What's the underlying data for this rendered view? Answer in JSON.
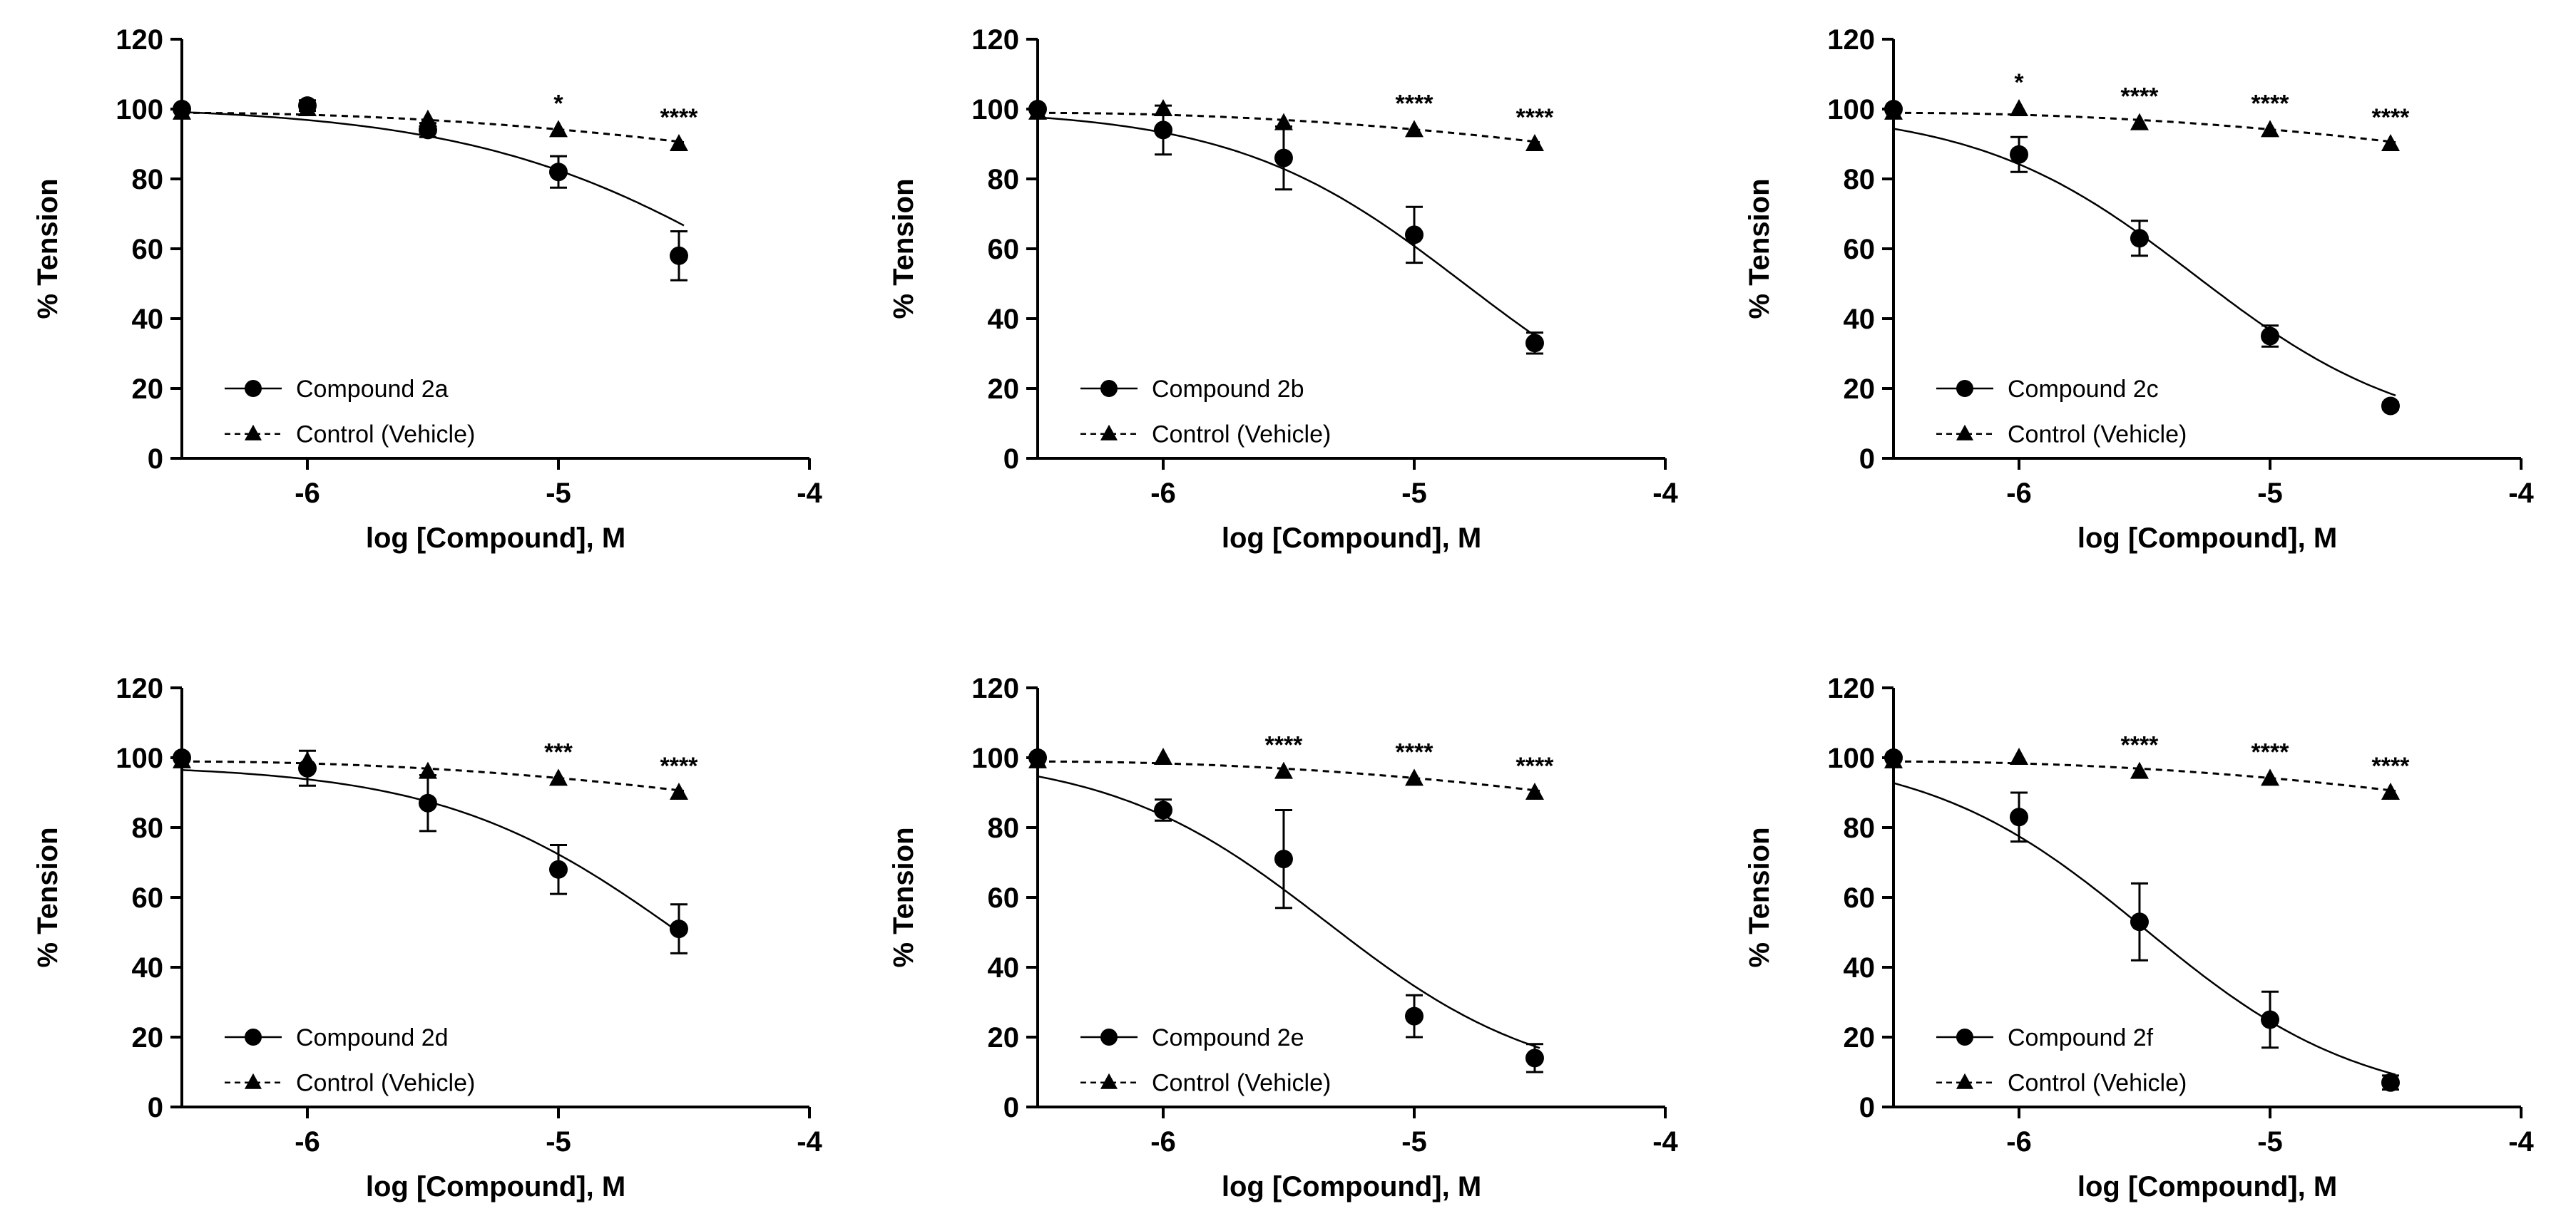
{
  "chart_data": [
    {
      "type": "scatter",
      "panel": "Compound 2a",
      "xlabel": "log [Compound], M",
      "ylabel": "% Tension",
      "xlim": [
        -6.5,
        -4
      ],
      "ylim": [
        0,
        120
      ],
      "xticks": [
        -6,
        -5,
        -4
      ],
      "xtick_labels": [
        "-6",
        "-5",
        "-4"
      ],
      "yticks": [
        0,
        20,
        40,
        60,
        80,
        100,
        120
      ],
      "ytick_labels": [
        "0",
        "20",
        "40",
        "60",
        "80",
        "100",
        "120"
      ],
      "legend_position": "bottom-left",
      "series": [
        {
          "name": "Compound 2a",
          "marker": "circle",
          "line": "solid",
          "x": [
            -6.5,
            -6,
            -5.52,
            -5,
            -4.52
          ],
          "y": [
            100,
            101,
            94,
            82,
            58
          ],
          "err": [
            0,
            1.5,
            2,
            4.5,
            7
          ],
          "curve": {
            "top": 101,
            "bottom": 0,
            "logIC50": -4.1,
            "hill": 0.72
          }
        },
        {
          "name": "Control (Vehicle)",
          "marker": "triangle",
          "line": "dashed",
          "x": [
            -6.5,
            -6,
            -5.52,
            -5,
            -4.52
          ],
          "y": [
            99,
            100,
            97,
            94,
            90
          ],
          "err": [
            0,
            0,
            0,
            0,
            0
          ],
          "curve": {
            "a": 98.9,
            "b": 90.5
          }
        }
      ],
      "annotations": [
        {
          "x": -5,
          "text": "*"
        },
        {
          "x": -4.52,
          "text": "****"
        }
      ]
    },
    {
      "type": "scatter",
      "panel": "Compound 2b",
      "xlabel": "log [Compound], M",
      "ylabel": "% Tension",
      "xlim": [
        -6.5,
        -4
      ],
      "ylim": [
        0,
        120
      ],
      "xticks": [
        -6,
        -5,
        -4
      ],
      "xtick_labels": [
        "-6",
        "-5",
        "-4"
      ],
      "yticks": [
        0,
        20,
        40,
        60,
        80,
        100,
        120
      ],
      "ytick_labels": [
        "0",
        "20",
        "40",
        "60",
        "80",
        "100",
        "120"
      ],
      "legend_position": "bottom-left",
      "series": [
        {
          "name": "Compound 2b",
          "marker": "circle",
          "line": "solid",
          "x": [
            -6.5,
            -6,
            -5.52,
            -5,
            -4.52
          ],
          "y": [
            100,
            94,
            86,
            64,
            33
          ],
          "err": [
            0,
            7,
            9,
            8,
            3
          ],
          "curve": {
            "top": 100,
            "bottom": 0,
            "logIC50": -4.8,
            "hill": 0.95
          }
        },
        {
          "name": "Control (Vehicle)",
          "marker": "triangle",
          "line": "dashed",
          "x": [
            -6.5,
            -6,
            -5.52,
            -5,
            -4.52
          ],
          "y": [
            99,
            100,
            96,
            94,
            90
          ],
          "err": [
            0,
            0,
            0,
            0,
            0
          ],
          "curve": {
            "a": 98.9,
            "b": 90.5
          }
        }
      ],
      "annotations": [
        {
          "x": -5,
          "text": "****"
        },
        {
          "x": -4.52,
          "text": "****"
        }
      ]
    },
    {
      "type": "scatter",
      "panel": "Compound 2c",
      "xlabel": "log [Compound], M",
      "ylabel": "% Tension",
      "xlim": [
        -6.5,
        -4
      ],
      "ylim": [
        0,
        120
      ],
      "xticks": [
        -6,
        -5,
        -4
      ],
      "xtick_labels": [
        "-6",
        "-5",
        "-4"
      ],
      "yticks": [
        0,
        20,
        40,
        60,
        80,
        100,
        120
      ],
      "ytick_labels": [
        "0",
        "20",
        "40",
        "60",
        "80",
        "100",
        "120"
      ],
      "legend_position": "bottom-left",
      "series": [
        {
          "name": "Compound 2c",
          "marker": "circle",
          "line": "solid",
          "x": [
            -6.5,
            -6,
            -5.52,
            -5,
            -4.52
          ],
          "y": [
            100,
            87,
            63,
            35,
            15
          ],
          "err": [
            0,
            5,
            5,
            3,
            1
          ],
          "curve": {
            "top": 100,
            "bottom": 5,
            "logIC50": -5.3,
            "hill": 1.0
          }
        },
        {
          "name": "Control (Vehicle)",
          "marker": "triangle",
          "line": "dashed",
          "x": [
            -6.5,
            -6,
            -5.52,
            -5,
            -4.52
          ],
          "y": [
            99,
            100,
            96,
            94,
            90
          ],
          "err": [
            0,
            0,
            0,
            0,
            0
          ],
          "curve": {
            "a": 98.9,
            "b": 90.5
          }
        }
      ],
      "annotations": [
        {
          "x": -6,
          "text": "*"
        },
        {
          "x": -5.52,
          "text": "****"
        },
        {
          "x": -5,
          "text": "****"
        },
        {
          "x": -4.52,
          "text": "****"
        }
      ]
    },
    {
      "type": "scatter",
      "panel": "Compound 2d",
      "xlabel": "log [Compound], M",
      "ylabel": "% Tension",
      "xlim": [
        -6.5,
        -4
      ],
      "ylim": [
        0,
        120
      ],
      "xticks": [
        -6,
        -5,
        -4
      ],
      "xtick_labels": [
        "-6",
        "-5",
        "-4"
      ],
      "yticks": [
        0,
        20,
        40,
        60,
        80,
        100,
        120
      ],
      "ytick_labels": [
        "0",
        "20",
        "40",
        "60",
        "80",
        "100",
        "120"
      ],
      "legend_position": "bottom-left",
      "series": [
        {
          "name": "Compound 2d",
          "marker": "circle",
          "line": "solid",
          "x": [
            -6.5,
            -6,
            -5.52,
            -5,
            -4.52
          ],
          "y": [
            100,
            97,
            87,
            68,
            51
          ],
          "err": [
            0,
            5,
            8,
            7,
            7
          ],
          "curve": {
            "top": 98,
            "bottom": 0,
            "logIC50": -4.5,
            "hill": 0.9
          }
        },
        {
          "name": "Control (Vehicle)",
          "marker": "triangle",
          "line": "dashed",
          "x": [
            -6.5,
            -6,
            -5.52,
            -5,
            -4.52
          ],
          "y": [
            99,
            99,
            96,
            94,
            90
          ],
          "err": [
            0,
            0,
            0,
            0,
            0
          ],
          "curve": {
            "a": 98.9,
            "b": 90.5
          }
        }
      ],
      "annotations": [
        {
          "x": -5,
          "text": "***"
        },
        {
          "x": -4.52,
          "text": "****"
        }
      ]
    },
    {
      "type": "scatter",
      "panel": "Compound 2e",
      "xlabel": "log [Compound], M",
      "ylabel": "% Tension",
      "xlim": [
        -6.5,
        -4
      ],
      "ylim": [
        0,
        120
      ],
      "xticks": [
        -6,
        -5,
        -4
      ],
      "xtick_labels": [
        "-6",
        "-5",
        "-4"
      ],
      "yticks": [
        0,
        20,
        40,
        60,
        80,
        100,
        120
      ],
      "ytick_labels": [
        "0",
        "20",
        "40",
        "60",
        "80",
        "100",
        "120"
      ],
      "legend_position": "bottom-left",
      "series": [
        {
          "name": "Compound 2e",
          "marker": "circle",
          "line": "solid",
          "x": [
            -6.5,
            -6,
            -5.52,
            -5,
            -4.52
          ],
          "y": [
            100,
            85,
            71,
            26,
            14
          ],
          "err": [
            0,
            3,
            14,
            6,
            4
          ],
          "curve": {
            "top": 101,
            "bottom": 5,
            "logIC50": -5.35,
            "hill": 1.0
          }
        },
        {
          "name": "Control (Vehicle)",
          "marker": "triangle",
          "line": "dashed",
          "x": [
            -6.5,
            -6,
            -5.52,
            -5,
            -4.52
          ],
          "y": [
            99,
            100,
            96,
            94,
            90
          ],
          "err": [
            0,
            0,
            0,
            0,
            0
          ],
          "curve": {
            "a": 98.9,
            "b": 90.5
          }
        }
      ],
      "annotations": [
        {
          "x": -5.52,
          "text": "****"
        },
        {
          "x": -5,
          "text": "****"
        },
        {
          "x": -4.52,
          "text": "****"
        }
      ]
    },
    {
      "type": "scatter",
      "panel": "Compound 2f",
      "xlabel": "log [Compound], M",
      "ylabel": "% Tension",
      "xlim": [
        -6.5,
        -4
      ],
      "ylim": [
        0,
        120
      ],
      "xticks": [
        -6,
        -5,
        -4
      ],
      "xtick_labels": [
        "-6",
        "-5",
        "-4"
      ],
      "yticks": [
        0,
        20,
        40,
        60,
        80,
        100,
        120
      ],
      "ytick_labels": [
        "0",
        "20",
        "40",
        "60",
        "80",
        "100",
        "120"
      ],
      "legend_position": "bottom-left",
      "series": [
        {
          "name": "Compound 2f",
          "marker": "circle",
          "line": "solid",
          "x": [
            -6.5,
            -6,
            -5.52,
            -5,
            -4.52
          ],
          "y": [
            100,
            83,
            53,
            25,
            7
          ],
          "err": [
            0,
            7,
            11,
            8,
            2
          ],
          "curve": {
            "top": 102,
            "bottom": 0,
            "logIC50": -5.5,
            "hill": 1.0
          }
        },
        {
          "name": "Control (Vehicle)",
          "marker": "triangle",
          "line": "dashed",
          "x": [
            -6.5,
            -6,
            -5.52,
            -5,
            -4.52
          ],
          "y": [
            99,
            100,
            96,
            94,
            90
          ],
          "err": [
            0,
            0,
            0,
            0,
            0
          ],
          "curve": {
            "a": 98.9,
            "b": 90.5
          }
        }
      ],
      "annotations": [
        {
          "x": -5.52,
          "text": "****"
        },
        {
          "x": -5,
          "text": "****"
        },
        {
          "x": -4.52,
          "text": "****"
        }
      ]
    }
  ]
}
